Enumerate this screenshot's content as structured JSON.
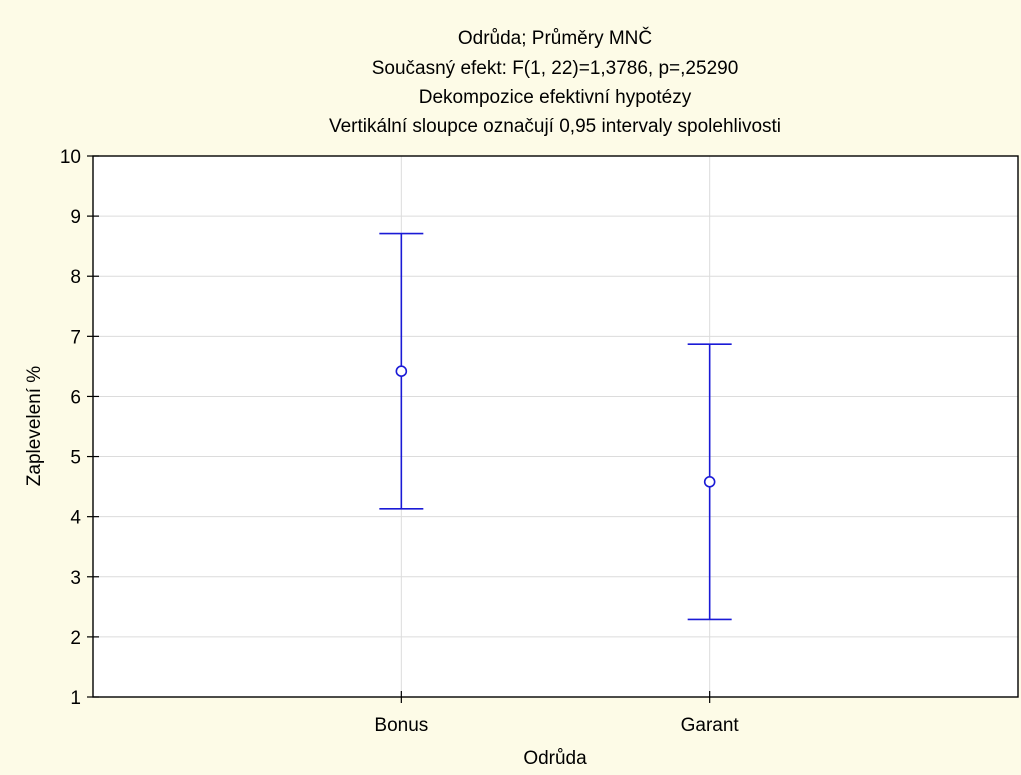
{
  "chart_data": {
    "type": "scatter",
    "title": [
      "Odrůda; Průměry MNČ",
      "Současný efekt: F(1, 22)=1,3786, p=,25290",
      "Dekompozice efektivní hypotézy",
      "Vertikální sloupce označují 0,95 intervaly spolehlivosti"
    ],
    "xlabel": "Odrůda",
    "ylabel": "Zaplevelení %",
    "categories": [
      "Bonus",
      "Garant"
    ],
    "series": [
      {
        "means": [
          6.42,
          4.58
        ],
        "ci_lower": [
          4.13,
          2.29
        ],
        "ci_upper": [
          8.71,
          6.87
        ]
      }
    ],
    "ylim": [
      1,
      10
    ],
    "yticks": [
      "1",
      "2",
      "3",
      "4",
      "5",
      "6",
      "7",
      "8",
      "9",
      "10"
    ],
    "grid": true,
    "legend": "none",
    "colors": {
      "background": "#fdfbe7",
      "plot_background": "#ffffff",
      "series": "#1a1ad6",
      "grid": "#dcdcdc",
      "axis": "#000000"
    }
  }
}
